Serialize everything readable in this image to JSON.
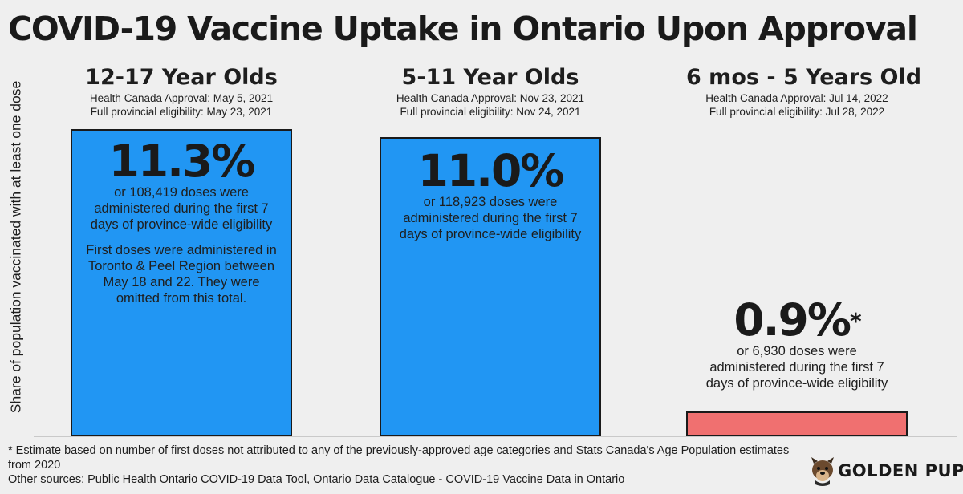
{
  "title": "COVID-19 Vaccine Uptake in Ontario Upon Approval",
  "brand": {
    "name": "GOLDEN PUP",
    "icon": "dog-head-logo"
  },
  "colors": {
    "blue_bar": "#2196f3",
    "red_bar": "#f07070",
    "background": "#efefef"
  },
  "chart_data": {
    "type": "bar",
    "title": "COVID-19 Vaccine Uptake in Ontario Upon Approval",
    "ylabel": "Share of population vaccinated with at least one dose",
    "xlabel": "",
    "ylim": [
      0,
      12
    ],
    "grid": false,
    "legend": "none",
    "categories": [
      "12-17 Year Olds",
      "5-11 Year Olds",
      "6 mos - 5 Years Old"
    ],
    "values": [
      11.3,
      11.0,
      0.9
    ],
    "bar_colors": [
      "#2196f3",
      "#2196f3",
      "#f07070"
    ],
    "groups": [
      {
        "label": "12-17 Year Olds",
        "approval": "Health Canada Approval: May 5, 2021",
        "eligibility": "Full provincial eligibility: May 23, 2021",
        "pct_label": "11.3%",
        "doses_text": "or 108,419 doses were administered during the first 7 days of province-wide eligibility",
        "note": "First doses were administered in Toronto & Peel Region between May 18 and 22. They were omitted from this total."
      },
      {
        "label": "5-11 Year Olds",
        "approval": "Health Canada Approval: Nov 23, 2021",
        "eligibility": "Full provincial eligibility: Nov 24, 2021",
        "pct_label": "11.0%",
        "doses_text": "or 118,923 doses were administered during the first 7 days of province-wide eligibility"
      },
      {
        "label": "6 mos - 5 Years Old",
        "approval": "Health Canada Approval: Jul 14, 2022",
        "eligibility": "Full provincial eligibility: Jul 28, 2022",
        "pct_label": "0.9%",
        "pct_mark": "*",
        "doses_text": "or 6,930 doses were administered during the first 7 days of province-wide eligibility"
      }
    ]
  },
  "footnote": "* Estimate based on number of first doses not attributed to any of the previously-approved age categories and Stats Canada's Age Population estimates from 2020",
  "sources": "Other sources: Public Health Ontario COVID-19 Data Tool, Ontario Data Catalogue - COVID-19 Vaccine Data in Ontario"
}
